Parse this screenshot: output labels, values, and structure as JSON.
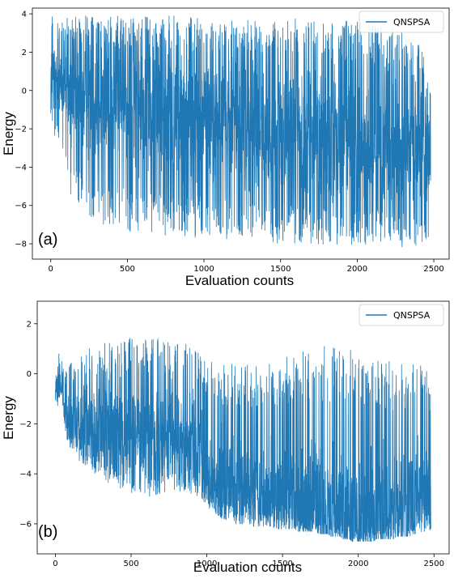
{
  "chart_data": [
    {
      "type": "line",
      "panel_label": "(a)",
      "xlabel": "Evaluation counts",
      "ylabel": "Energy",
      "xlim": [
        -120,
        2600
      ],
      "ylim": [
        -8.8,
        4.3
      ],
      "xticks": [
        0,
        500,
        1000,
        1500,
        2000,
        2500
      ],
      "yticks": [
        -8,
        -6,
        -4,
        -2,
        0,
        2,
        4
      ],
      "ytick_labels": [
        "−8",
        "−6",
        "−4",
        "−2",
        "0",
        "2",
        "4"
      ],
      "legend": {
        "label": "QNSPSA",
        "placement": "top-right"
      },
      "color": "#1f77b4",
      "series": [
        {
          "name": "QNSPSA",
          "x_start": 0,
          "x_end": 2480,
          "x_step": 20,
          "low": [
            -1.2,
            -3.4,
            -2.5,
            -2.6,
            -3.2,
            -4.4,
            -5.4,
            -5.7,
            -6.0,
            -6.1,
            -6.2,
            -6.4,
            -6.5,
            -6.7,
            -6.8,
            -6.9,
            -7.0,
            -7.1,
            -7.1,
            -7.2,
            -7.2,
            -7.3,
            -7.3,
            -7.3,
            -7.4,
            -7.4,
            -7.4,
            -7.4,
            -7.5,
            -7.5,
            -7.5,
            -7.5,
            -7.5,
            -7.5,
            -7.5,
            -7.5,
            -7.6,
            -7.6,
            -7.6,
            -7.6,
            -7.6,
            -7.6,
            -7.6,
            -7.6,
            -7.7,
            -7.7,
            -7.7,
            -7.7,
            -7.7,
            -7.7,
            -7.7,
            -7.7,
            -7.7,
            -7.8,
            -7.8,
            -7.8,
            -7.8,
            -7.8,
            -7.8,
            -7.8,
            -7.8,
            -7.8,
            -7.9,
            -7.9,
            -7.9,
            -7.9,
            -7.9,
            -7.9,
            -7.9,
            -8.0,
            -8.0,
            -8.0,
            -8.0,
            -8.0,
            -8.0,
            -8.0,
            -8.0,
            -8.0,
            -8.0,
            -8.0,
            -8.0,
            -8.1,
            -8.1,
            -8.1,
            -8.1,
            -8.1,
            -8.1,
            -8.1,
            -8.1,
            -8.1,
            -8.1,
            -8.1,
            -8.1,
            -8.1,
            -8.1,
            -8.1,
            -8.1,
            -8.1,
            -8.1,
            -8.1,
            -8.1,
            -8.1,
            -8.1,
            -8.1,
            -8.1,
            -8.1,
            -8.1,
            -8.1,
            -8.2,
            -8.2,
            -8.2,
            -8.2,
            -8.2,
            -8.2,
            -8.2,
            -8.2,
            -8.2,
            -8.2,
            -8.2,
            -8.2,
            -8.2,
            -8.2,
            -8.1,
            -8.0,
            -7.8
          ],
          "high": [
            3.9,
            3.8,
            3.7,
            3.7,
            3.8,
            3.8,
            3.8,
            3.9,
            3.9,
            3.9,
            3.9,
            3.9,
            3.9,
            3.9,
            3.9,
            3.9,
            3.9,
            3.9,
            3.9,
            3.9,
            3.9,
            3.9,
            3.9,
            3.9,
            3.9,
            3.9,
            3.9,
            3.9,
            3.9,
            3.9,
            3.9,
            3.9,
            3.9,
            3.9,
            3.9,
            3.9,
            3.9,
            3.9,
            3.9,
            3.9,
            3.9,
            3.9,
            3.9,
            3.9,
            3.9,
            3.9,
            3.9,
            3.9,
            3.9,
            3.9,
            3.9,
            3.9,
            3.9,
            3.9,
            3.9,
            3.9,
            3.9,
            3.9,
            3.9,
            3.9,
            3.9,
            3.9,
            3.9,
            3.9,
            3.9,
            3.9,
            3.9,
            3.9,
            3.9,
            3.9,
            3.9,
            3.9,
            3.9,
            3.9,
            3.9,
            3.9,
            3.8,
            3.8,
            3.8,
            3.8,
            3.8,
            3.8,
            3.8,
            3.8,
            3.8,
            3.8,
            3.8,
            3.8,
            3.8,
            3.7,
            3.7,
            3.7,
            3.7,
            3.7,
            3.7,
            3.7,
            3.7,
            3.6,
            3.6,
            3.6,
            3.6,
            3.6,
            3.5,
            3.5,
            3.5,
            3.5,
            3.5,
            3.4,
            3.4,
            3.4,
            3.3,
            3.3,
            3.3,
            3.2,
            3.2,
            3.2,
            3.1,
            3.0,
            3.0,
            2.8,
            2.6,
            2.2,
            1.5,
            0.8,
            0.0
          ],
          "center": [
            0.5,
            0.8,
            0.6,
            0.5,
            0.4,
            0.3,
            0.2,
            0.1,
            0.0,
            0.0,
            -0.1,
            -0.2,
            -0.2,
            -0.3,
            -0.3,
            -0.4,
            -0.4,
            -0.5,
            -0.5,
            -0.5,
            -0.6,
            -0.6,
            -0.6,
            -0.7,
            -0.7,
            -0.7,
            -0.8,
            -0.8,
            -0.8,
            -0.9,
            -0.9,
            -0.9,
            -1.0,
            -1.0,
            -1.0,
            -1.0,
            -1.1,
            -1.1,
            -1.1,
            -1.1,
            -1.2,
            -1.2,
            -1.2,
            -1.2,
            -1.3,
            -1.3,
            -1.3,
            -1.3,
            -1.4,
            -1.4,
            -1.4,
            -1.4,
            -1.5,
            -1.5,
            -1.5,
            -1.5,
            -1.6,
            -1.6,
            -1.6,
            -1.6,
            -1.7,
            -1.7,
            -1.7,
            -1.7,
            -1.8,
            -1.8,
            -1.8,
            -1.8,
            -1.9,
            -1.9,
            -1.9,
            -1.9,
            -2.0,
            -2.0,
            -2.0,
            -2.0,
            -2.1,
            -2.1,
            -2.1,
            -2.1,
            -2.2,
            -2.2,
            -2.2,
            -2.2,
            -2.3,
            -2.3,
            -2.3,
            -2.3,
            -2.4,
            -2.4,
            -2.4,
            -2.4,
            -2.5,
            -2.5,
            -2.5,
            -2.5,
            -2.6,
            -2.6,
            -2.6,
            -2.6,
            -2.7,
            -2.7,
            -2.7,
            -2.7,
            -2.8,
            -2.8,
            -2.8,
            -2.8,
            -2.9,
            -2.9,
            -2.9,
            -2.9,
            -3.0,
            -3.0,
            -3.0,
            -3.0,
            -3.1,
            -3.1,
            -3.1,
            -3.1,
            -3.2,
            -3.2,
            -3.3,
            -3.4,
            -3.6
          ]
        }
      ]
    },
    {
      "type": "line",
      "panel_label": "(b)",
      "xlabel": "Evaluation counts",
      "ylabel": "Energy",
      "xlim": [
        -120,
        2600
      ],
      "ylim": [
        -7.2,
        2.9
      ],
      "xticks": [
        0,
        500,
        1000,
        1500,
        2000,
        2500
      ],
      "yticks": [
        -6,
        -4,
        -2,
        0,
        2
      ],
      "ytick_labels": [
        "−6",
        "−4",
        "−2",
        "0",
        "2"
      ],
      "legend": {
        "label": "QNSPSA",
        "placement": "top-right"
      },
      "color": "#1f77b4",
      "series": [
        {
          "name": "QNSPSA",
          "x_start": 0,
          "x_end": 2480,
          "x_step": 20,
          "low": [
            -1.5,
            -1.2,
            -0.8,
            -2.1,
            -2.8,
            -3.0,
            -3.1,
            -3.3,
            -3.5,
            -3.6,
            -3.7,
            -3.8,
            -3.9,
            -4.0,
            -4.1,
            -4.2,
            -4.3,
            -4.4,
            -4.5,
            -4.5,
            -4.6,
            -4.6,
            -4.7,
            -4.7,
            -4.8,
            -4.8,
            -4.8,
            -4.9,
            -4.9,
            -4.9,
            -4.9,
            -4.9,
            -4.9,
            -4.9,
            -4.8,
            -4.8,
            -4.8,
            -4.8,
            -4.7,
            -4.7,
            -4.7,
            -4.7,
            -4.7,
            -4.7,
            -4.7,
            -4.8,
            -4.8,
            -4.9,
            -5.0,
            -5.1,
            -5.3,
            -5.4,
            -5.5,
            -5.6,
            -5.7,
            -5.8,
            -5.8,
            -5.9,
            -5.9,
            -6.0,
            -6.0,
            -6.0,
            -6.0,
            -6.1,
            -6.1,
            -6.1,
            -6.1,
            -6.1,
            -6.1,
            -6.1,
            -6.1,
            -6.1,
            -6.2,
            -6.2,
            -6.2,
            -6.2,
            -6.2,
            -6.2,
            -6.2,
            -6.2,
            -6.3,
            -6.3,
            -6.3,
            -6.3,
            -6.3,
            -6.3,
            -6.3,
            -6.4,
            -6.4,
            -6.4,
            -6.4,
            -6.5,
            -6.5,
            -6.5,
            -6.5,
            -6.6,
            -6.6,
            -6.6,
            -6.7,
            -6.7,
            -6.7,
            -6.7,
            -6.7,
            -6.7,
            -6.7,
            -6.7,
            -6.6,
            -6.6,
            -6.6,
            -6.6,
            -6.6,
            -6.6,
            -6.6,
            -6.5,
            -6.5,
            -6.5,
            -6.5,
            -6.5,
            -6.4,
            -6.4,
            -6.4,
            -6.3,
            -6.3,
            -6.3,
            -6.2
          ],
          "high": [
            1.1,
            1.0,
            0.6,
            0.0,
            0.2,
            0.4,
            0.5,
            0.6,
            0.7,
            0.8,
            0.9,
            1.0,
            1.0,
            1.1,
            1.1,
            1.2,
            1.2,
            1.3,
            1.3,
            1.3,
            1.4,
            1.4,
            1.4,
            1.4,
            1.5,
            1.5,
            1.5,
            1.5,
            1.5,
            1.5,
            1.5,
            1.5,
            1.5,
            1.5,
            1.5,
            1.5,
            1.5,
            1.4,
            1.4,
            1.4,
            1.4,
            1.3,
            1.3,
            1.2,
            1.2,
            1.1,
            1.0,
            0.9,
            0.8,
            0.7,
            0.6,
            0.6,
            0.5,
            0.5,
            0.5,
            0.5,
            0.4,
            0.4,
            0.4,
            0.4,
            0.4,
            0.4,
            0.4,
            0.4,
            0.4,
            0.4,
            0.4,
            0.5,
            0.5,
            0.5,
            0.5,
            0.6,
            0.6,
            0.6,
            0.7,
            0.7,
            0.7,
            0.8,
            0.8,
            0.8,
            0.9,
            0.9,
            0.9,
            1.0,
            1.0,
            1.0,
            1.0,
            1.1,
            1.1,
            1.1,
            1.1,
            1.1,
            1.1,
            1.1,
            1.1,
            1.0,
            1.0,
            1.0,
            1.0,
            0.9,
            0.9,
            0.9,
            0.9,
            0.8,
            0.8,
            0.8,
            0.7,
            0.7,
            0.7,
            0.6,
            0.6,
            0.6,
            0.5,
            0.5,
            0.5,
            0.5,
            0.4,
            0.4,
            0.4,
            0.4,
            0.3,
            0.5,
            0.6,
            0.4,
            0.0
          ],
          "center": [
            -0.6,
            -0.4,
            -0.5,
            -1.6,
            -1.8,
            -1.8,
            -1.9,
            -1.9,
            -2.0,
            -2.0,
            -2.1,
            -2.1,
            -2.1,
            -2.2,
            -2.2,
            -2.3,
            -2.3,
            -2.3,
            -2.4,
            -2.4,
            -2.4,
            -2.5,
            -2.5,
            -2.5,
            -2.6,
            -2.6,
            -2.6,
            -2.6,
            -2.7,
            -2.7,
            -2.7,
            -2.7,
            -2.7,
            -2.7,
            -2.7,
            -2.7,
            -2.6,
            -2.6,
            -2.6,
            -2.6,
            -2.6,
            -2.6,
            -2.6,
            -2.6,
            -2.6,
            -2.7,
            -2.8,
            -3.0,
            -3.3,
            -3.6,
            -3.9,
            -4.1,
            -4.2,
            -4.3,
            -4.3,
            -4.4,
            -4.4,
            -4.4,
            -4.5,
            -4.5,
            -4.5,
            -4.5,
            -4.6,
            -4.6,
            -4.6,
            -4.6,
            -4.6,
            -4.7,
            -4.7,
            -4.7,
            -4.7,
            -4.8,
            -4.8,
            -4.8,
            -4.8,
            -4.9,
            -4.9,
            -4.9,
            -4.9,
            -5.0,
            -5.0,
            -5.0,
            -5.1,
            -5.1,
            -5.1,
            -5.2,
            -5.2,
            -5.2,
            -5.3,
            -5.3,
            -5.3,
            -5.4,
            -5.4,
            -5.4,
            -5.5,
            -5.5,
            -5.6,
            -5.6,
            -5.6,
            -5.7,
            -5.7,
            -5.7,
            -5.7,
            -5.7,
            -5.7,
            -5.6,
            -5.6,
            -5.5,
            -5.5,
            -5.4,
            -5.4,
            -5.3,
            -5.3,
            -5.2,
            -5.2,
            -5.1,
            -5.1,
            -5.0,
            -5.0,
            -4.9,
            -4.9,
            -4.8,
            -4.8,
            -4.9,
            -5.0
          ]
        }
      ]
    }
  ]
}
